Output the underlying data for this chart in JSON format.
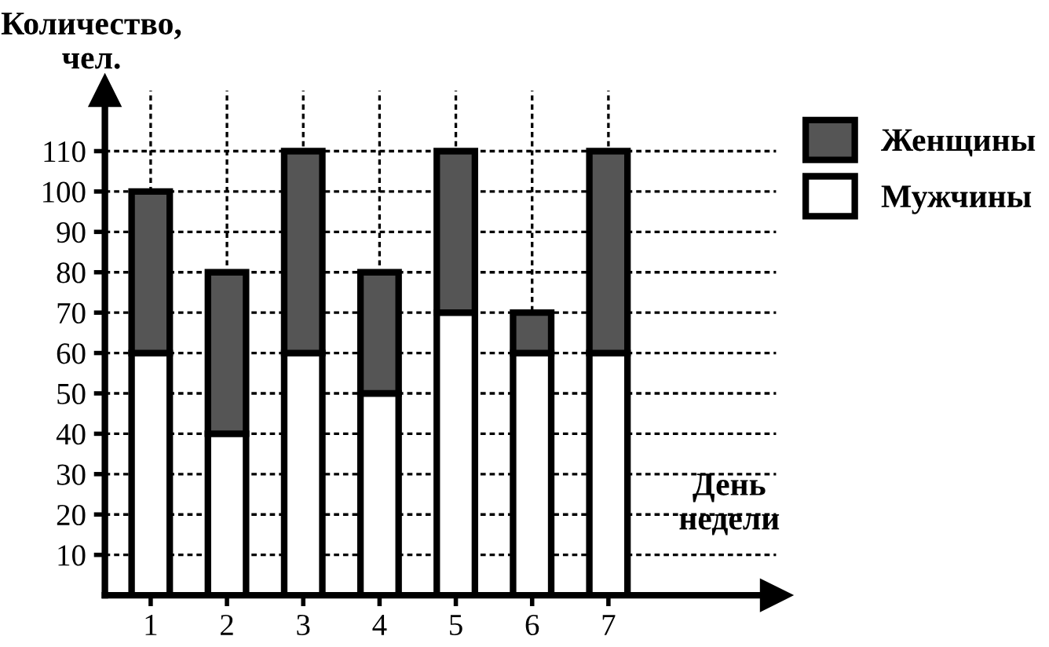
{
  "chart_data": {
    "type": "bar",
    "stacked": true,
    "ylabel": "Количество, чел.",
    "xlabel": "День недели",
    "categories": [
      "1",
      "2",
      "3",
      "4",
      "5",
      "6",
      "7"
    ],
    "series": [
      {
        "name": "Мужчины",
        "color": "#ffffff",
        "values": [
          60,
          40,
          60,
          50,
          70,
          60,
          60
        ]
      },
      {
        "name": "Женщины",
        "color": "#555555",
        "values": [
          40,
          40,
          50,
          30,
          40,
          10,
          50
        ]
      }
    ],
    "ylim": [
      0,
      125
    ],
    "yticks": [
      10,
      20,
      30,
      40,
      50,
      60,
      70,
      80,
      90,
      100,
      110
    ],
    "grid": true,
    "legend": "top right"
  }
}
